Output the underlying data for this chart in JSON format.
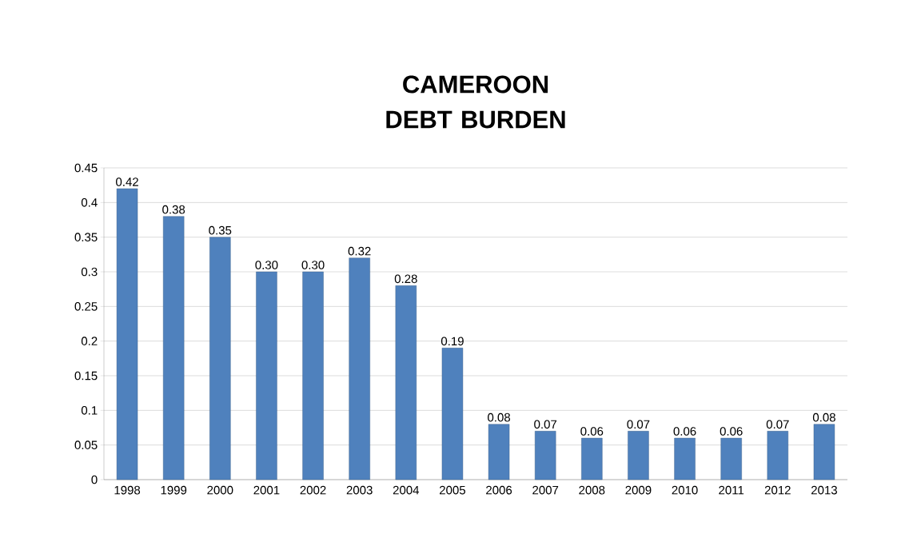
{
  "chart_data": {
    "type": "bar",
    "title": "CAMEROON DEBT BURDEN",
    "categories": [
      "1998",
      "1999",
      "2000",
      "2001",
      "2002",
      "2003",
      "2004",
      "2005",
      "2006",
      "2007",
      "2008",
      "2009",
      "2010",
      "2011",
      "2012",
      "2013"
    ],
    "values": [
      0.42,
      0.38,
      0.35,
      0.3,
      0.3,
      0.32,
      0.28,
      0.19,
      0.08,
      0.07,
      0.06,
      0.07,
      0.06,
      0.06,
      0.07,
      0.08
    ],
    "value_labels": [
      "0.42",
      "0.38",
      "0.35",
      "0.30",
      "0.30",
      "0.32",
      "0.28",
      "0.19",
      "0.08",
      "0.07",
      "0.06",
      "0.07",
      "0.06",
      "0.06",
      "0.07",
      "0.08"
    ],
    "color": "#4f81bd",
    "ylim": [
      0,
      0.45
    ],
    "yticks": [
      0,
      0.05,
      0.1,
      0.15,
      0.2,
      0.25,
      0.3,
      0.35,
      0.4,
      0.45
    ],
    "grid": "y"
  }
}
